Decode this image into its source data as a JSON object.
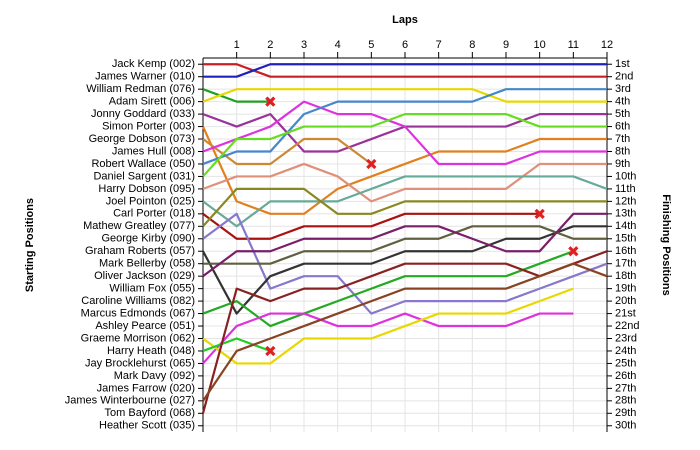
{
  "chart_data": {
    "type": "line",
    "x_label": "Laps",
    "y_label": "Starting Positions",
    "y2_label": "Finishing Positions",
    "x": [
      0,
      1,
      2,
      3,
      4,
      5,
      6,
      7,
      8,
      9,
      10,
      11,
      12
    ],
    "xlim": [
      0,
      12
    ],
    "xticks": [
      1,
      2,
      3,
      4,
      5,
      6,
      7,
      8,
      9,
      10,
      11,
      12
    ],
    "ylim": [
      30.5,
      0.5
    ],
    "yticks": [
      {
        "value": 1,
        "label": "Jack Kemp (002)"
      },
      {
        "value": 2,
        "label": "James Warner (010)"
      },
      {
        "value": 3,
        "label": "William Redman (076)"
      },
      {
        "value": 4,
        "label": "Adam Sirett (006)"
      },
      {
        "value": 5,
        "label": "Jonny Goddard (033)"
      },
      {
        "value": 6,
        "label": "Simon Porter (003)"
      },
      {
        "value": 7,
        "label": "George Dobson (073)"
      },
      {
        "value": 8,
        "label": "James Hull (008)"
      },
      {
        "value": 9,
        "label": "Robert Wallace (050)"
      },
      {
        "value": 10,
        "label": "Daniel Sargent (031)"
      },
      {
        "value": 11,
        "label": "Harry Dobson (095)"
      },
      {
        "value": 12,
        "label": "Joel Pointon (025)"
      },
      {
        "value": 13,
        "label": "Carl Porter (018)"
      },
      {
        "value": 14,
        "label": "Mathew Greatley (077)"
      },
      {
        "value": 15,
        "label": "George Kirby (090)"
      },
      {
        "value": 16,
        "label": "Graham Roberts (057)"
      },
      {
        "value": 17,
        "label": "Mark Bellerby (058)"
      },
      {
        "value": 18,
        "label": "Oliver Jackson (029)"
      },
      {
        "value": 19,
        "label": "William Fox (055)"
      },
      {
        "value": 20,
        "label": "Caroline Williams (082)"
      },
      {
        "value": 21,
        "label": "Marcus Edmonds (067)"
      },
      {
        "value": 22,
        "label": "Ashley Pearce (051)"
      },
      {
        "value": 23,
        "label": "Graeme Morrison (062)"
      },
      {
        "value": 24,
        "label": "Harry Heath (048)"
      },
      {
        "value": 25,
        "label": "Jay Brocklehurst (065)"
      },
      {
        "value": 26,
        "label": "Mark Davy (092)"
      },
      {
        "value": 27,
        "label": "James Farrow (020)"
      },
      {
        "value": 28,
        "label": "James Winterbourne (027)"
      },
      {
        "value": 29,
        "label": "Tom Bayford (068)"
      },
      {
        "value": 30,
        "label": "Heather Scott (035)"
      }
    ],
    "y2lim": [
      30.5,
      0.5
    ],
    "y2ticks": [
      {
        "value": 1,
        "label": "1st"
      },
      {
        "value": 2,
        "label": "2nd"
      },
      {
        "value": 3,
        "label": "3rd"
      },
      {
        "value": 4,
        "label": "4th"
      },
      {
        "value": 5,
        "label": "5th"
      },
      {
        "value": 6,
        "label": "6th"
      },
      {
        "value": 7,
        "label": "7th"
      },
      {
        "value": 8,
        "label": "8th"
      },
      {
        "value": 9,
        "label": "9th"
      },
      {
        "value": 10,
        "label": "10th"
      },
      {
        "value": 11,
        "label": "11th"
      },
      {
        "value": 12,
        "label": "12th"
      },
      {
        "value": 13,
        "label": "13th"
      },
      {
        "value": 14,
        "label": "14th"
      },
      {
        "value": 15,
        "label": "15th"
      },
      {
        "value": 16,
        "label": "16th"
      },
      {
        "value": 17,
        "label": "17th"
      },
      {
        "value": 18,
        "label": "18th"
      },
      {
        "value": 19,
        "label": "19th"
      },
      {
        "value": 20,
        "label": "20th"
      },
      {
        "value": 21,
        "label": "21st"
      },
      {
        "value": 22,
        "label": "22nd"
      },
      {
        "value": 23,
        "label": "23rd"
      },
      {
        "value": 24,
        "label": "24th"
      },
      {
        "value": 25,
        "label": "25th"
      },
      {
        "value": 26,
        "label": "26th"
      },
      {
        "value": 27,
        "label": "27th"
      },
      {
        "value": 28,
        "label": "28th"
      },
      {
        "value": 29,
        "label": "29th"
      },
      {
        "value": 30,
        "label": "30th"
      }
    ],
    "grid": true,
    "series": [
      {
        "color": "#c82020",
        "values": [
          1,
          1,
          2,
          2,
          2,
          2,
          2,
          2,
          2,
          2,
          2,
          2,
          2
        ]
      },
      {
        "color": "#2020c0",
        "values": [
          2,
          2,
          1,
          1,
          1,
          1,
          1,
          1,
          1,
          1,
          1,
          1,
          1
        ]
      },
      {
        "color": "#20a020",
        "values": [
          3,
          4,
          4,
          null,
          null,
          null,
          null,
          null,
          null,
          null,
          null,
          null,
          null
        ],
        "retired": true
      },
      {
        "color": "#e8d800",
        "values": [
          4,
          3,
          3,
          3,
          3,
          3,
          3,
          3,
          3,
          4,
          4,
          4,
          4
        ]
      },
      {
        "color": "#993399",
        "values": [
          5,
          6,
          5,
          8,
          8,
          7,
          6,
          6,
          6,
          6,
          5,
          5,
          5
        ]
      },
      {
        "color": "#e08020",
        "values": [
          6,
          12,
          13,
          13,
          11,
          10,
          9,
          8,
          8,
          8,
          7,
          7,
          7
        ]
      },
      {
        "color": "#cc8833",
        "values": [
          7,
          9,
          9,
          7,
          7,
          9,
          null,
          null,
          null,
          null,
          null,
          null,
          null
        ],
        "retired": true
      },
      {
        "color": "#dd33dd",
        "values": [
          8,
          7,
          6,
          4,
          5,
          5,
          6,
          9,
          9,
          9,
          8,
          8,
          8
        ]
      },
      {
        "color": "#4488cc",
        "values": [
          9,
          8,
          8,
          5,
          4,
          4,
          4,
          4,
          4,
          3,
          3,
          3,
          3
        ]
      },
      {
        "color": "#66dd22",
        "values": [
          10,
          7,
          7,
          6,
          6,
          6,
          5,
          5,
          5,
          5,
          6,
          6,
          6
        ]
      },
      {
        "color": "#e0907a",
        "values": [
          11,
          10,
          10,
          9,
          10,
          12,
          11,
          11,
          11,
          11,
          9,
          9,
          9
        ]
      },
      {
        "color": "#66aa99",
        "values": [
          12,
          14,
          12,
          12,
          12,
          11,
          10,
          10,
          10,
          10,
          10,
          10,
          11
        ]
      },
      {
        "color": "#aa1111",
        "values": [
          13,
          15,
          15,
          14,
          14,
          14,
          13,
          13,
          13,
          13,
          13,
          null,
          null
        ],
        "retired": true
      },
      {
        "color": "#888822",
        "values": [
          14,
          11,
          11,
          11,
          13,
          13,
          12,
          12,
          12,
          12,
          12,
          12,
          12
        ]
      },
      {
        "color": "#8877cc",
        "values": [
          15,
          13,
          19,
          18,
          18,
          21,
          20,
          20,
          20,
          20,
          19,
          18,
          17
        ]
      },
      {
        "color": "#333333",
        "values": [
          16,
          21,
          18,
          17,
          17,
          17,
          16,
          16,
          16,
          15,
          15,
          14,
          14
        ]
      },
      {
        "color": "#606040",
        "values": [
          17,
          17,
          17,
          16,
          16,
          16,
          15,
          15,
          14,
          14,
          14,
          15,
          15
        ]
      },
      {
        "color": "#7a1f6a",
        "values": [
          18,
          16,
          16,
          15,
          15,
          15,
          14,
          14,
          15,
          16,
          16,
          13,
          13
        ]
      },
      {
        "color": "#22aa22",
        "values": [
          21,
          20,
          22,
          21,
          20,
          19,
          18,
          18,
          18,
          18,
          17,
          16,
          null
        ],
        "retired": true
      },
      {
        "color": "#dd33dd",
        "values": [
          25,
          22,
          21,
          21,
          22,
          22,
          21,
          22,
          22,
          22,
          21,
          21,
          null
        ]
      },
      {
        "color": "#e8d800",
        "values": [
          23,
          25,
          25,
          23,
          23,
          23,
          22,
          21,
          21,
          21,
          20,
          19,
          null
        ]
      },
      {
        "color": "#22cc22",
        "values": [
          24,
          23,
          24,
          null,
          null,
          null,
          null,
          null,
          null,
          null,
          null,
          null,
          null
        ],
        "retired": true
      },
      {
        "color": "#882222",
        "values": [
          29,
          19,
          20,
          19,
          19,
          18,
          17,
          17,
          17,
          17,
          18,
          17,
          16
        ]
      },
      {
        "color": "#884422",
        "values": [
          28,
          24,
          23,
          22,
          21,
          20,
          19,
          19,
          19,
          19,
          18,
          17,
          18
        ]
      }
    ]
  }
}
